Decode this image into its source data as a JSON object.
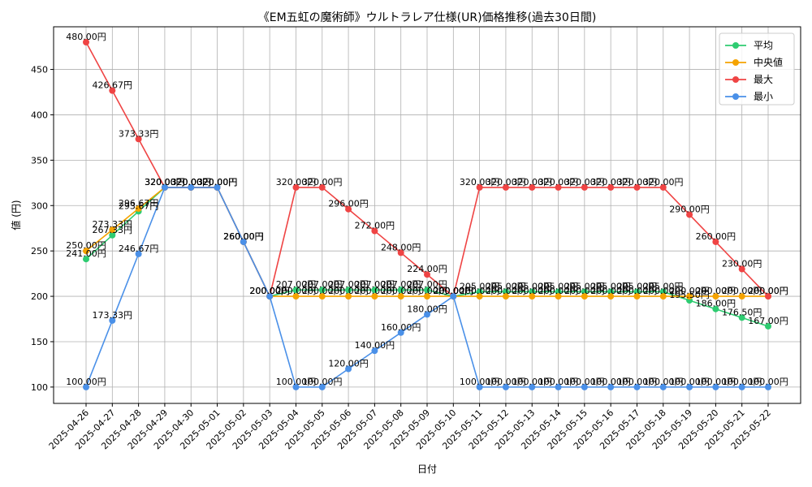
{
  "chart_data": {
    "type": "line",
    "title": "《EM五虹の魔術師》ウルトラレア仕様(UR)価格推移(過去30日間)",
    "xlabel": "日付",
    "ylabel": "値 (円)",
    "ylim": [
      82,
      497
    ],
    "yticks": [
      100,
      150,
      200,
      250,
      300,
      350,
      400,
      450
    ],
    "grid": true,
    "legend_position": "top-right",
    "label_suffix": "円",
    "categories": [
      "2025-04-26",
      "2025-04-27",
      "2025-04-28",
      "2025-04-29",
      "2025-04-30",
      "2025-05-01",
      "2025-05-02",
      "2025-05-03",
      "2025-05-04",
      "2025-05-05",
      "2025-05-06",
      "2025-05-07",
      "2025-05-08",
      "2025-05-09",
      "2025-05-10",
      "2025-05-11",
      "2025-05-12",
      "2025-05-13",
      "2025-05-14",
      "2025-05-15",
      "2025-05-16",
      "2025-05-17",
      "2025-05-18",
      "2025-05-19",
      "2025-05-20",
      "2025-05-21",
      "2025-05-22"
    ],
    "series": [
      {
        "name": "平均",
        "color": "#2ecc71",
        "values": [
          241,
          267.33,
          293.67,
          320,
          320,
          320,
          260,
          200,
          207,
          207,
          207,
          207,
          207,
          207,
          200,
          205,
          205,
          205,
          205,
          205,
          205,
          205,
          205,
          195.5,
          186,
          176.5,
          167
        ]
      },
      {
        "name": "中央値",
        "color": "#f5a300",
        "values": [
          250,
          273.33,
          296.67,
          320,
          320,
          320,
          260,
          200,
          200,
          200,
          200,
          200,
          200,
          200,
          200,
          200,
          200,
          200,
          200,
          200,
          200,
          200,
          200,
          200,
          200,
          200,
          200
        ]
      },
      {
        "name": "最大",
        "color": "#ef4444",
        "values": [
          480,
          426.67,
          373.33,
          320,
          320,
          320,
          260,
          200,
          320,
          320,
          296,
          272,
          248,
          224,
          200,
          320,
          320,
          320,
          320,
          320,
          320,
          320,
          320,
          290,
          260,
          230,
          200
        ]
      },
      {
        "name": "最小",
        "color": "#4a90e8",
        "values": [
          100,
          173.33,
          246.67,
          320,
          320,
          320,
          260,
          200,
          100,
          100,
          120,
          140,
          160,
          180,
          200,
          100,
          100,
          100,
          100,
          100,
          100,
          100,
          100,
          100,
          100,
          100,
          100
        ]
      }
    ]
  }
}
